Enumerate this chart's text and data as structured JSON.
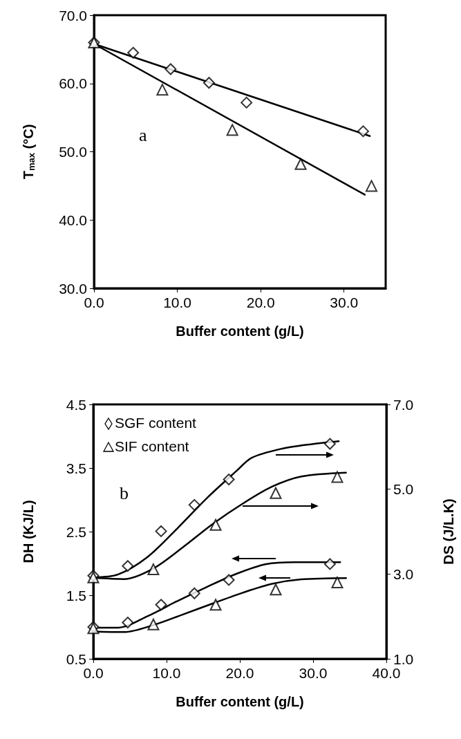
{
  "chart_data": [
    {
      "type": "scatter",
      "xlabel": "Buffer content (g/L)",
      "ylabel": "T$_{max}$ (°C)",
      "xlim": [
        0,
        35
      ],
      "xticks": [
        {
          "value": 0,
          "label": "0.0"
        },
        {
          "value": 10,
          "label": "10.0"
        },
        {
          "value": 20,
          "label": "20.0"
        },
        {
          "value": 30,
          "label": "30.0"
        }
      ],
      "ylim": [
        30,
        70
      ],
      "yticks": [
        {
          "value": 30,
          "label": "30.0"
        },
        {
          "value": 40,
          "label": "40.0"
        },
        {
          "value": 50,
          "label": "50.0"
        },
        {
          "value": 60,
          "label": "60.0"
        },
        {
          "value": 70,
          "label": "70.0"
        }
      ],
      "annotations": [
        "a"
      ],
      "series": [
        {
          "marker": "diamond",
          "color": "#000000",
          "x": [
            0,
            4.7,
            9.2,
            13.8,
            18.3,
            32.3
          ],
          "values": [
            66.0,
            64.5,
            62.1,
            60.1,
            57.2,
            53.0
          ]
        },
        {
          "marker": "triangle",
          "color": "#000000",
          "x": [
            0,
            8.2,
            16.6,
            24.8,
            33.3
          ],
          "values": [
            66.0,
            59.1,
            53.2,
            48.2,
            45.0
          ]
        },
        {
          "type": "line",
          "color": "#000000",
          "x": [
            0,
            33.1
          ],
          "values": [
            65.8,
            52.3
          ]
        },
        {
          "type": "line",
          "color": "#000000",
          "x": [
            0,
            32.5
          ],
          "values": [
            65.8,
            43.7
          ]
        }
      ]
    },
    {
      "type": "scatter",
      "xlabel": "Buffer content (g/L)",
      "ylabel": "DH (KJ/L)",
      "y2label": "DS (J/L.K)",
      "xlim": [
        0,
        40
      ],
      "xticks": [
        {
          "value": 0,
          "label": "0.0"
        },
        {
          "value": 10,
          "label": "10.0"
        },
        {
          "value": 20,
          "label": "20.0"
        },
        {
          "value": 30,
          "label": "30.0"
        },
        {
          "value": 40,
          "label": "40.0"
        }
      ],
      "ylim": [
        0.5,
        4.5
      ],
      "yticks": [
        0.5,
        1.5,
        2.5,
        3.5,
        4.5
      ],
      "y2lim": [
        1,
        7
      ],
      "y2ticks": [
        {
          "value": 1,
          "label": "1.0"
        },
        {
          "value": 3,
          "label": "3.0"
        },
        {
          "value": 5,
          "label": "5.0"
        },
        {
          "value": 7,
          "label": "7.0"
        }
      ],
      "legend": "top left",
      "annotations": [
        "b"
      ],
      "series": [
        {
          "name": "SGF content",
          "marker": "diamond",
          "color": "#000000",
          "axis": "y2",
          "x": [
            0,
            4.7,
            9.25,
            13.8,
            18.5,
            32.3
          ],
          "values": [
            2.96,
            3.19,
            4.01,
            4.63,
            5.23,
            6.07
          ]
        },
        {
          "name": "SIF content",
          "marker": "triangle",
          "color": "#000000",
          "axis": "y2",
          "x": [
            0,
            8.2,
            16.7,
            24.9,
            33.3
          ],
          "values": [
            2.92,
            3.11,
            4.16,
            4.91,
            5.29
          ]
        },
        {
          "marker": "diamond",
          "color": "#000000",
          "x": [
            0,
            4.7,
            9.25,
            13.8,
            18.5,
            32.3
          ],
          "values": [
            1.0,
            1.07,
            1.35,
            1.53,
            1.74,
            1.99
          ]
        },
        {
          "marker": "triangle",
          "color": "#000000",
          "x": [
            0,
            8.2,
            16.7,
            24.9,
            33.3
          ],
          "values": [
            0.98,
            1.04,
            1.35,
            1.59,
            1.7
          ]
        },
        {
          "type": "line",
          "color": "#000000",
          "axis": "y2",
          "x": [
            0,
            3.4,
            7.4,
            11.5,
            15.5,
            19.6,
            21.6,
            25.6,
            29.7,
            33.5
          ],
          "values": [
            2.92,
            2.99,
            3.4,
            4.08,
            4.79,
            5.44,
            5.74,
            5.95,
            6.06,
            6.13
          ]
        },
        {
          "type": "line",
          "color": "#000000",
          "axis": "y2",
          "x": [
            0,
            4.2,
            8.2,
            12.3,
            16.3,
            20.4,
            24.4,
            28.4,
            34.5
          ],
          "values": [
            2.91,
            2.88,
            3.13,
            3.64,
            4.18,
            4.66,
            5.06,
            5.3,
            5.39
          ]
        },
        {
          "type": "line",
          "color": "#000000",
          "x": [
            0,
            3.4,
            7.4,
            11.5,
            15.5,
            19.6,
            23.6,
            27.6,
            33.7
          ],
          "values": [
            0.99,
            0.99,
            1.17,
            1.41,
            1.63,
            1.84,
            1.99,
            2.02,
            2.02
          ]
        },
        {
          "type": "line",
          "color": "#000000",
          "x": [
            0,
            4.2,
            8.2,
            12.3,
            16.3,
            20.4,
            24.4,
            28.4,
            34.5
          ],
          "values": [
            0.93,
            0.92,
            1.03,
            1.2,
            1.37,
            1.54,
            1.68,
            1.75,
            1.77
          ]
        }
      ]
    }
  ]
}
